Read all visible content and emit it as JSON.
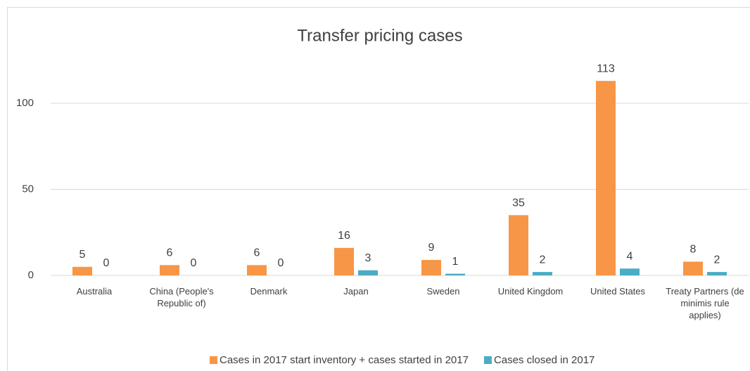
{
  "chart_data": {
    "type": "bar",
    "title": "Transfer pricing cases",
    "categories": [
      "Australia",
      "China (People's Republic of)",
      "Denmark",
      "Japan",
      "Sweden",
      "United Kingdom",
      "United States",
      "Treaty Partners (de minimis rule applies)"
    ],
    "series": [
      {
        "name": "Cases in 2017 start inventory + cases started in 2017",
        "color": "#f79646",
        "values": [
          5,
          6,
          6,
          16,
          9,
          35,
          113,
          8
        ]
      },
      {
        "name": "Cases closed in 2017",
        "color": "#4bacc6",
        "values": [
          0,
          0,
          0,
          3,
          1,
          2,
          4,
          2
        ]
      }
    ],
    "ylim": [
      0,
      120
    ],
    "yticks": [
      0,
      50,
      100
    ],
    "grid": true,
    "legend": "bottom"
  }
}
